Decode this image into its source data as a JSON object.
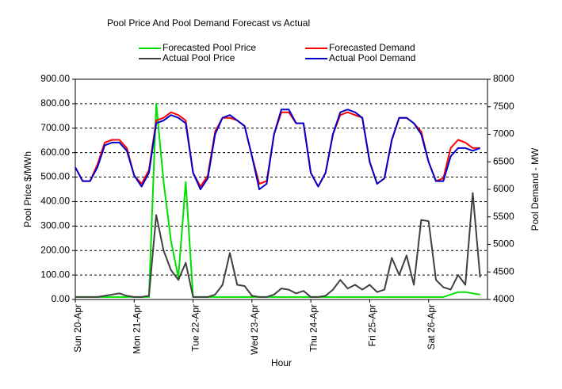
{
  "chart_data": {
    "type": "line",
    "title": "Pool Price And Pool Demand Forecast vs Actual",
    "x_label": "Hour",
    "y_label": "Pool Price $/MWh",
    "y2_label": "Pool Demand - MW",
    "legend": "top",
    "grid": true,
    "categories": [
      "Sun 20-Apr",
      null,
      null,
      null,
      null,
      null,
      null,
      null,
      "Mon 21-Apr",
      null,
      null,
      null,
      null,
      null,
      null,
      null,
      "Tue 22-Apr",
      null,
      null,
      null,
      null,
      null,
      null,
      null,
      "Wed 23-Apr",
      null,
      null,
      null,
      null,
      null,
      null,
      null,
      "Thu 24-Apr",
      null,
      null,
      null,
      null,
      null,
      null,
      null,
      "Fri 25-Apr",
      null,
      null,
      null,
      null,
      null,
      null,
      null,
      "Sat 26-Apr",
      null,
      null,
      null,
      null,
      null,
      null,
      null
    ],
    "ylim": [
      0,
      900
    ],
    "yticks": [
      {
        "value": 0,
        "label": "0.00"
      },
      {
        "value": 100,
        "label": "100.00"
      },
      {
        "value": 200,
        "label": "200.00"
      },
      {
        "value": 300,
        "label": "300.00"
      },
      {
        "value": 400,
        "label": "400.00"
      },
      {
        "value": 500,
        "label": "500.00"
      },
      {
        "value": 600,
        "label": "600.00"
      },
      {
        "value": 700,
        "label": "700.00"
      },
      {
        "value": 800,
        "label": "800.00"
      },
      {
        "value": 900,
        "label": "900.00"
      }
    ],
    "y2lim": [
      4000,
      8000
    ],
    "y2ticks": [
      4000,
      4500,
      5000,
      5500,
      6000,
      6500,
      7000,
      7500,
      8000
    ],
    "series": [
      {
        "name": "Forecasted Pool Price",
        "color": "#00e000",
        "axis": "y",
        "values": [
          10,
          10,
          10,
          10,
          10,
          10,
          10,
          10,
          10,
          10,
          10,
          800,
          480,
          240,
          90,
          480,
          10,
          10,
          10,
          10,
          10,
          10,
          10,
          10,
          10,
          10,
          10,
          10,
          10,
          10,
          10,
          10,
          10,
          10,
          10,
          10,
          10,
          10,
          10,
          10,
          10,
          10,
          10,
          10,
          10,
          10,
          10,
          10,
          10,
          10,
          10,
          20,
          30,
          30,
          25,
          20
        ]
      },
      {
        "name": "Forecasted Demand",
        "color": "#ff0000",
        "axis": "y2",
        "values": [
          6400,
          6150,
          6150,
          6450,
          6850,
          6900,
          6900,
          6750,
          6250,
          6100,
          6350,
          7250,
          7300,
          7400,
          7350,
          7250,
          6300,
          6050,
          6250,
          7050,
          7300,
          7300,
          7250,
          7150,
          6600,
          6100,
          6150,
          7000,
          7400,
          7400,
          7200,
          7200,
          6300,
          6050,
          6300,
          7000,
          7350,
          7400,
          7350,
          7300,
          6500,
          6100,
          6200,
          6900,
          7300,
          7300,
          7200,
          7050,
          6500,
          6150,
          6200,
          6750,
          6900,
          6850,
          6750,
          6750
        ]
      },
      {
        "name": "Actual Pool Price",
        "color": "#404040",
        "axis": "y",
        "values": [
          10,
          10,
          10,
          10,
          15,
          20,
          25,
          15,
          10,
          10,
          15,
          345,
          200,
          120,
          80,
          150,
          10,
          10,
          10,
          20,
          60,
          190,
          60,
          55,
          15,
          10,
          10,
          20,
          45,
          40,
          25,
          35,
          10,
          10,
          15,
          40,
          80,
          45,
          60,
          40,
          60,
          30,
          40,
          170,
          100,
          180,
          60,
          325,
          320,
          80,
          50,
          40,
          100,
          60,
          435,
          90
        ]
      },
      {
        "name": "Actual Pool Demand",
        "color": "#0000cc",
        "axis": "y2",
        "values": [
          6400,
          6150,
          6150,
          6400,
          6800,
          6850,
          6850,
          6700,
          6250,
          6050,
          6300,
          7200,
          7250,
          7350,
          7300,
          7200,
          6300,
          6000,
          6200,
          7000,
          7300,
          7350,
          7250,
          7150,
          6600,
          6000,
          6100,
          7000,
          7450,
          7450,
          7200,
          7200,
          6300,
          6050,
          6300,
          7000,
          7400,
          7450,
          7400,
          7300,
          6500,
          6100,
          6200,
          6900,
          7300,
          7300,
          7200,
          7000,
          6500,
          6150,
          6150,
          6600,
          6750,
          6750,
          6700,
          6750
        ]
      }
    ]
  }
}
